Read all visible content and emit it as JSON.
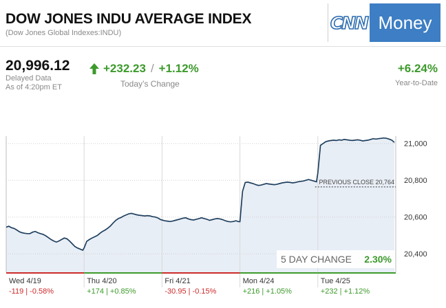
{
  "header": {
    "title": "DOW JONES INDU AVERAGE INDEX",
    "subtitle": "(Dow Jones Global Indexes:INDU)",
    "logo_cnn": "CNN",
    "logo_money": "Money"
  },
  "quote": {
    "price": "20,996.12",
    "delayed_label": "Delayed Data",
    "as_of": "As of 4:20pm ET",
    "change_points": "+232.23",
    "separator": "/",
    "change_percent": "+1.12%",
    "change_label": "Today’s Change",
    "ytd_value": "+6.24%",
    "ytd_label": "Year-to-Date",
    "up_color": "#3c9a2b",
    "arrow_icon": "arrow-up-icon"
  },
  "chart_data": {
    "type": "area",
    "y_ticks": [
      20400,
      20600,
      20800,
      21000
    ],
    "y_tick_labels": [
      "20,400",
      "20,600",
      "20,800",
      "21,000"
    ],
    "ylim": [
      20300,
      21040
    ],
    "previous_close": 20764,
    "previous_close_label": "PREVIOUS CLOSE 20,764",
    "five_day_change_label": "5 DAY CHANGE",
    "five_day_change_value": "2.30%",
    "days": [
      {
        "label": "Wed 4/19",
        "change": "-119 | -0.58%",
        "dir": "down",
        "values": [
          20545,
          20550,
          20542,
          20538,
          20530,
          20520,
          20515,
          20512,
          20510,
          20510,
          20518,
          20522,
          20515,
          20510,
          20506,
          20498,
          20488,
          20478,
          20470,
          20464,
          20470,
          20478,
          20486,
          20482,
          20470,
          20455,
          20440,
          20432,
          20426,
          20420
        ]
      },
      {
        "label": "Thu 4/20",
        "change": "+174 | +0.85%",
        "dir": "up",
        "values": [
          20432,
          20468,
          20478,
          20486,
          20493,
          20500,
          20512,
          20522,
          20530,
          20540,
          20552,
          20568,
          20582,
          20592,
          20598,
          20606,
          20612,
          20618,
          20620,
          20616,
          20612,
          20610,
          20608,
          20606,
          20608,
          20606,
          20602,
          20600,
          20595,
          20586
        ]
      },
      {
        "label": "Fri 4/21",
        "change": "-30.95 | -0.15%",
        "dir": "down",
        "values": [
          20584,
          20580,
          20578,
          20576,
          20578,
          20582,
          20586,
          20590,
          20594,
          20596,
          20590,
          20586,
          20584,
          20588,
          20592,
          20596,
          20592,
          20588,
          20582,
          20586,
          20590,
          20592,
          20590,
          20586,
          20580,
          20576,
          20574,
          20576,
          20580,
          20575
        ]
      },
      {
        "label": "Mon 4/24",
        "change": "+216 | +1.05%",
        "dir": "up",
        "values": [
          20575,
          20740,
          20788,
          20790,
          20786,
          20782,
          20776,
          20772,
          20774,
          20778,
          20782,
          20780,
          20778,
          20776,
          20778,
          20782,
          20786,
          20788,
          20790,
          20788,
          20786,
          20788,
          20792,
          20794,
          20796,
          20800,
          20804,
          20800,
          20796,
          20792
        ]
      },
      {
        "label": "Tue 4/25",
        "change": "+232 | +1.12%",
        "dir": "up",
        "values": [
          20840,
          20990,
          21000,
          21010,
          21014,
          21016,
          21018,
          21016,
          21020,
          21018,
          21022,
          21020,
          21018,
          21016,
          21018,
          21020,
          21018,
          21014,
          21016,
          21018,
          21022,
          21026,
          21024,
          21026,
          21028,
          21030,
          21028,
          21024,
          21018,
          21006
        ]
      }
    ],
    "colors": {
      "line": "#1f3f5e",
      "fill": "#e8eef6",
      "up": "#3c9a2b",
      "down": "#cc2b2b",
      "grid": "#d0d0d0"
    }
  }
}
